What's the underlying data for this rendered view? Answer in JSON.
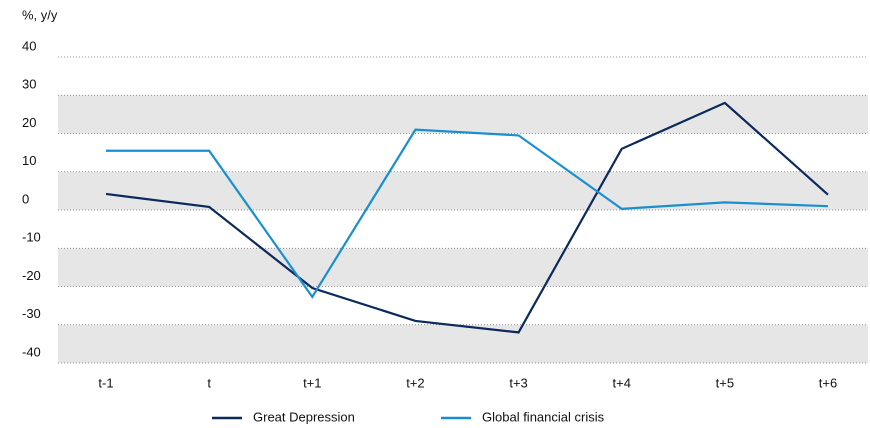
{
  "chart_data": {
    "type": "line",
    "y_axis_label": "%, y/y",
    "categories": [
      "t-1",
      "t",
      "t+1",
      "t+2",
      "t+3",
      "t+4",
      "t+5",
      "t+6"
    ],
    "series": [
      {
        "name": "Great Depression",
        "color": "#0b2a5b",
        "values": [
          4.2,
          0.8,
          -20.4,
          -29,
          -32,
          16,
          28,
          4
        ]
      },
      {
        "name": "Global financial crisis",
        "color": "#1a8fd0",
        "values": [
          15.5,
          15.5,
          -22.7,
          21,
          19.5,
          0.3,
          2,
          1
        ]
      }
    ],
    "ylim": [
      -40,
      40
    ],
    "yticks": [
      -40,
      -30,
      -20,
      -10,
      0,
      10,
      20,
      30,
      40
    ],
    "grid": true,
    "bands": true,
    "band_color": "#e6e6e6",
    "legend": "bottom"
  }
}
